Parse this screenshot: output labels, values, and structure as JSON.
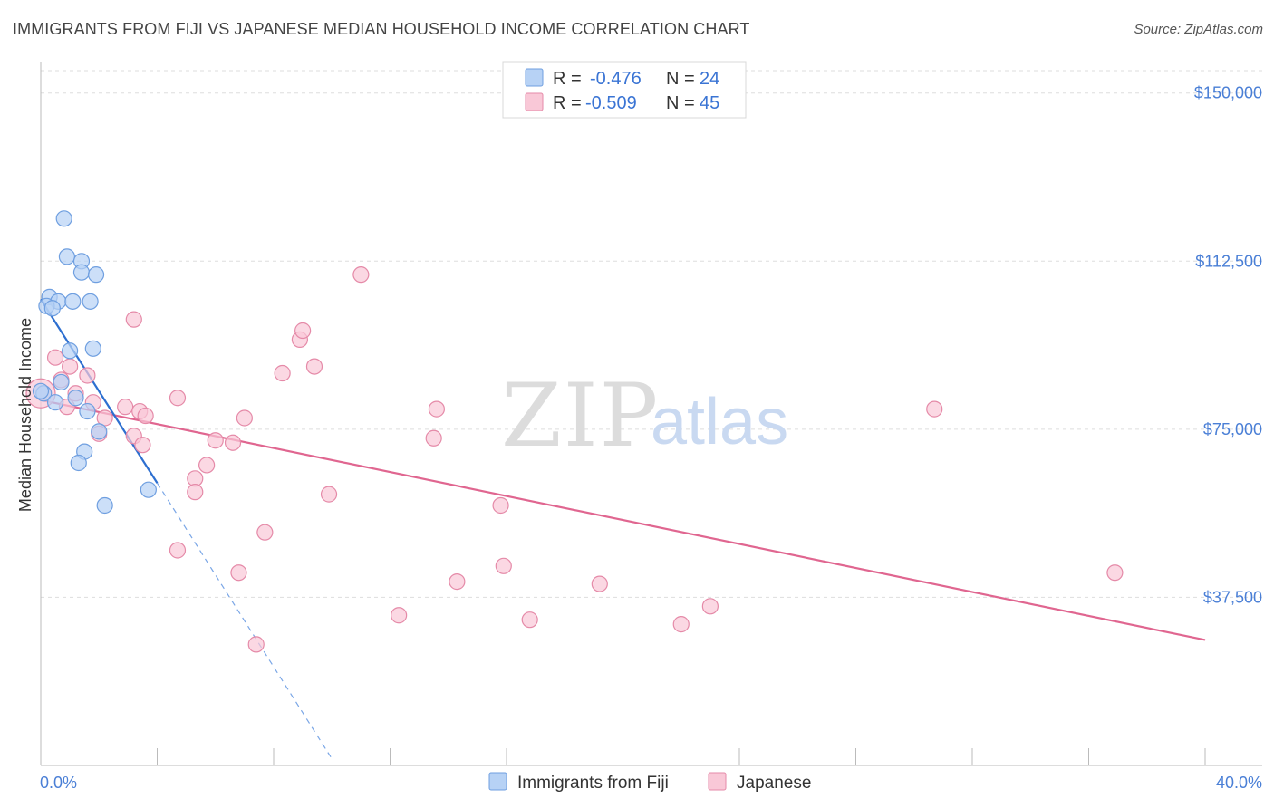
{
  "header": {
    "title": "IMMIGRANTS FROM FIJI VS JAPANESE MEDIAN HOUSEHOLD INCOME CORRELATION CHART",
    "source": "Source: ZipAtlas.com"
  },
  "watermark": {
    "zip": "ZIP",
    "atlas": "atlas"
  },
  "legend": {
    "rows": [
      {
        "r_label": "R =",
        "r_value": "-0.476",
        "n_label": "N =",
        "n_value": "24",
        "color": "#b7d2f5",
        "stroke": "#7aa6e6"
      },
      {
        "r_label": "R =",
        "r_value": "-0.509",
        "n_label": "N =",
        "n_value": "45",
        "color": "#f9c8d7",
        "stroke": "#ee9ab5"
      }
    ]
  },
  "colors": {
    "fiji_fill": "#b7d2f5",
    "fiji_stroke": "#6f9fe0",
    "fiji_line": "#2d6fd0",
    "jp_fill": "#f9c8d7",
    "jp_stroke": "#e58aa8",
    "jp_line": "#e06690",
    "grid": "#dddddd",
    "axis_text": "#4a7fd6"
  },
  "chart_data": {
    "type": "scatter",
    "title": "IMMIGRANTS FROM FIJI VS JAPANESE MEDIAN HOUSEHOLD INCOME CORRELATION CHART",
    "xlabel": "",
    "ylabel": "Median Household Income",
    "xlim": [
      0,
      40
    ],
    "ylim": [
      0,
      155000
    ],
    "x_tick_labels": [
      "0.0%",
      "40.0%"
    ],
    "y_ticks": [
      37500,
      75000,
      112500,
      150000
    ],
    "y_tick_labels": [
      "$37,500",
      "$75,000",
      "$112,500",
      "$150,000"
    ],
    "legend_position": "bottom-center",
    "series": [
      {
        "name": "Immigrants from Fiji",
        "r": -0.476,
        "n": 24,
        "points": [
          [
            0.8,
            122000
          ],
          [
            0.9,
            113500
          ],
          [
            1.4,
            112500
          ],
          [
            1.4,
            110000
          ],
          [
            1.9,
            109500
          ],
          [
            0.3,
            104500
          ],
          [
            0.6,
            103500
          ],
          [
            1.1,
            103500
          ],
          [
            1.7,
            103500
          ],
          [
            0.2,
            102500
          ],
          [
            0.4,
            102000
          ],
          [
            0.1,
            83000
          ],
          [
            1.8,
            93000
          ],
          [
            1.0,
            92500
          ],
          [
            0.7,
            85500
          ],
          [
            0.5,
            81000
          ],
          [
            1.2,
            82000
          ],
          [
            1.6,
            79000
          ],
          [
            2.0,
            74500
          ],
          [
            1.5,
            70000
          ],
          [
            1.3,
            67500
          ],
          [
            2.2,
            58000
          ],
          [
            3.7,
            61500
          ],
          [
            0.0,
            83500
          ]
        ],
        "trend": {
          "x0": 0.0,
          "y0": 104000,
          "x1": 4.0,
          "y1": 63000,
          "dash_to_x": 10.0,
          "dash_to_y": 1500
        }
      },
      {
        "name": "Japanese",
        "r": -0.509,
        "n": 45,
        "points": [
          [
            0.0,
            83000
          ],
          [
            0.5,
            91000
          ],
          [
            0.7,
            86000
          ],
          [
            1.0,
            89000
          ],
          [
            1.2,
            83000
          ],
          [
            1.6,
            87000
          ],
          [
            1.8,
            81000
          ],
          [
            2.2,
            77500
          ],
          [
            2.0,
            74000
          ],
          [
            2.9,
            80000
          ],
          [
            3.2,
            73500
          ],
          [
            3.4,
            79000
          ],
          [
            3.6,
            78000
          ],
          [
            3.5,
            71500
          ],
          [
            4.7,
            82000
          ],
          [
            3.2,
            99500
          ],
          [
            4.7,
            48000
          ],
          [
            5.3,
            64000
          ],
          [
            5.3,
            61000
          ],
          [
            5.7,
            67000
          ],
          [
            6.0,
            72500
          ],
          [
            6.6,
            72000
          ],
          [
            7.0,
            77500
          ],
          [
            6.8,
            43000
          ],
          [
            7.4,
            27000
          ],
          [
            7.7,
            52000
          ],
          [
            8.3,
            87500
          ],
          [
            8.9,
            95000
          ],
          [
            9.0,
            97000
          ],
          [
            9.4,
            89000
          ],
          [
            9.9,
            60500
          ],
          [
            11.0,
            109500
          ],
          [
            12.3,
            33500
          ],
          [
            13.6,
            79500
          ],
          [
            13.5,
            73000
          ],
          [
            14.3,
            41000
          ],
          [
            15.8,
            58000
          ],
          [
            15.9,
            44500
          ],
          [
            16.8,
            32500
          ],
          [
            19.2,
            40500
          ],
          [
            22.0,
            31500
          ],
          [
            23.0,
            35500
          ],
          [
            30.7,
            79500
          ],
          [
            36.9,
            43000
          ],
          [
            0.9,
            80000
          ]
        ],
        "trend": {
          "x0": 0.0,
          "y0": 81500,
          "x1": 40.0,
          "y1": 28000
        }
      }
    ]
  }
}
